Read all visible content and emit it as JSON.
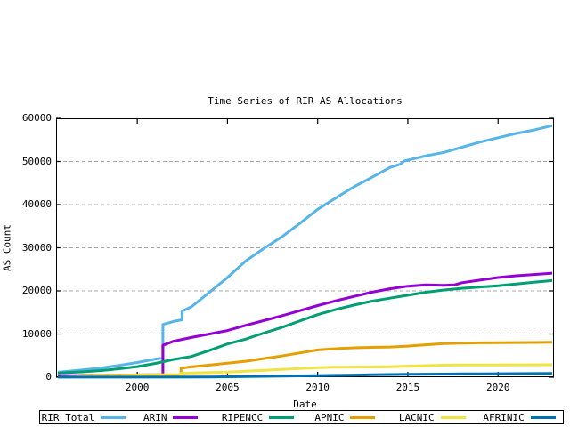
{
  "title": "Time Series of RIR AS Allocations",
  "xlabel": "Date",
  "ylabel": "AS Count",
  "chart_data": {
    "type": "line",
    "title": "Time Series of RIR AS Allocations",
    "xlabel": "Date",
    "ylabel": "AS Count",
    "xlim": [
      1995.5,
      2023.1
    ],
    "ylim": [
      0,
      60000
    ],
    "x_ticks": [
      2000,
      2005,
      2010,
      2015,
      2020
    ],
    "y_ticks": [
      0,
      10000,
      20000,
      30000,
      40000,
      50000,
      60000
    ],
    "grid": "horizontal-dashed",
    "legend_position": "below",
    "series": [
      {
        "name": "RIR Total",
        "color": "#56B4E9",
        "points": [
          [
            1995.6,
            1150
          ],
          [
            1997,
            1700
          ],
          [
            1998,
            2150
          ],
          [
            1999,
            2750
          ],
          [
            2000,
            3400
          ],
          [
            2001,
            4200
          ],
          [
            2001.42,
            4450
          ],
          [
            2001.42,
            12200
          ],
          [
            2002,
            12900
          ],
          [
            2002.48,
            13300
          ],
          [
            2002.48,
            15300
          ],
          [
            2003,
            16300
          ],
          [
            2004,
            19700
          ],
          [
            2005,
            23100
          ],
          [
            2006,
            26900
          ],
          [
            2007,
            29800
          ],
          [
            2008,
            32500
          ],
          [
            2009,
            35600
          ],
          [
            2010,
            38900
          ],
          [
            2011,
            41500
          ],
          [
            2012,
            44100
          ],
          [
            2013,
            46300
          ],
          [
            2014,
            48600
          ],
          [
            2014.6,
            49400
          ],
          [
            2014.8,
            50100
          ],
          [
            2016,
            51300
          ],
          [
            2017,
            52100
          ],
          [
            2018,
            53300
          ],
          [
            2019,
            54500
          ],
          [
            2020,
            55500
          ],
          [
            2021,
            56500
          ],
          [
            2022,
            57300
          ],
          [
            2023,
            58300
          ]
        ]
      },
      {
        "name": "ARIN",
        "color": "#9400D3",
        "points": [
          [
            1995.6,
            300
          ],
          [
            1999,
            500
          ],
          [
            2001.42,
            600
          ],
          [
            2001.42,
            7400
          ],
          [
            2002,
            8300
          ],
          [
            2003,
            9200
          ],
          [
            2004,
            10000
          ],
          [
            2005,
            10800
          ],
          [
            2006,
            12000
          ],
          [
            2007,
            13100
          ],
          [
            2008,
            14200
          ],
          [
            2009,
            15400
          ],
          [
            2010,
            16600
          ],
          [
            2011,
            17700
          ],
          [
            2012,
            18700
          ],
          [
            2013,
            19700
          ],
          [
            2014,
            20500
          ],
          [
            2015,
            21100
          ],
          [
            2016,
            21400
          ],
          [
            2017,
            21300
          ],
          [
            2017.6,
            21400
          ],
          [
            2018,
            21900
          ],
          [
            2019,
            22500
          ],
          [
            2020,
            23100
          ],
          [
            2021,
            23500
          ],
          [
            2022,
            23800
          ],
          [
            2023,
            24100
          ]
        ]
      },
      {
        "name": "RIPENCC",
        "color": "#009E73",
        "points": [
          [
            1995.6,
            950
          ],
          [
            1997,
            1250
          ],
          [
            1998,
            1550
          ],
          [
            1999,
            1950
          ],
          [
            2000,
            2450
          ],
          [
            2001,
            3200
          ],
          [
            2002,
            4100
          ],
          [
            2003,
            4800
          ],
          [
            2004,
            6200
          ],
          [
            2005,
            7700
          ],
          [
            2006,
            8800
          ],
          [
            2007,
            10200
          ],
          [
            2008,
            11500
          ],
          [
            2009,
            13000
          ],
          [
            2010,
            14500
          ],
          [
            2011,
            15700
          ],
          [
            2012,
            16700
          ],
          [
            2013,
            17600
          ],
          [
            2014,
            18300
          ],
          [
            2015,
            19000
          ],
          [
            2016,
            19700
          ],
          [
            2017,
            20200
          ],
          [
            2018,
            20600
          ],
          [
            2019,
            20900
          ],
          [
            2020,
            21200
          ],
          [
            2021,
            21600
          ],
          [
            2022,
            22000
          ],
          [
            2023,
            22400
          ]
        ]
      },
      {
        "name": "APNIC",
        "color": "#E69F00",
        "points": [
          [
            2002.35,
            500
          ],
          [
            2002.42,
            500
          ],
          [
            2002.42,
            2100
          ],
          [
            2003,
            2400
          ],
          [
            2004,
            2800
          ],
          [
            2005,
            3250
          ],
          [
            2006,
            3700
          ],
          [
            2007,
            4300
          ],
          [
            2008,
            4900
          ],
          [
            2009,
            5600
          ],
          [
            2010,
            6300
          ],
          [
            2011,
            6600
          ],
          [
            2012,
            6800
          ],
          [
            2013,
            6900
          ],
          [
            2014,
            7000
          ],
          [
            2015,
            7200
          ],
          [
            2016,
            7500
          ],
          [
            2017,
            7800
          ],
          [
            2018,
            7900
          ],
          [
            2019,
            7950
          ],
          [
            2020,
            8000
          ],
          [
            2022,
            8050
          ],
          [
            2023,
            8100
          ]
        ]
      },
      {
        "name": "LACNIC",
        "color": "#F0E442",
        "points": [
          [
            1995.6,
            0
          ],
          [
            1996.6,
            100
          ],
          [
            1997,
            300
          ],
          [
            1998,
            420
          ],
          [
            1999,
            470
          ],
          [
            2000,
            520
          ],
          [
            2001,
            560
          ],
          [
            2002.42,
            620
          ],
          [
            2002.42,
            900
          ],
          [
            2003,
            980
          ],
          [
            2004,
            1080
          ],
          [
            2005,
            1200
          ],
          [
            2006,
            1380
          ],
          [
            2007,
            1580
          ],
          [
            2008,
            1800
          ],
          [
            2009,
            2000
          ],
          [
            2010,
            2200
          ],
          [
            2011,
            2300
          ],
          [
            2012,
            2360
          ],
          [
            2013,
            2380
          ],
          [
            2014,
            2430
          ],
          [
            2015,
            2550
          ],
          [
            2016,
            2680
          ],
          [
            2017,
            2780
          ],
          [
            2018,
            2820
          ],
          [
            2019,
            2840
          ],
          [
            2020,
            2850
          ],
          [
            2021,
            2860
          ],
          [
            2022,
            2870
          ],
          [
            2023,
            2880
          ]
        ]
      },
      {
        "name": "AFRINIC",
        "color": "#0072B2",
        "points": [
          [
            1995.6,
            20
          ],
          [
            2000,
            30
          ],
          [
            2004,
            60
          ],
          [
            2005,
            100
          ],
          [
            2006,
            150
          ],
          [
            2007,
            210
          ],
          [
            2008,
            260
          ],
          [
            2009,
            310
          ],
          [
            2010,
            380
          ],
          [
            2011,
            440
          ],
          [
            2012,
            490
          ],
          [
            2013,
            570
          ],
          [
            2014,
            620
          ],
          [
            2015,
            660
          ],
          [
            2016,
            700
          ],
          [
            2017,
            730
          ],
          [
            2018,
            760
          ],
          [
            2019,
            790
          ],
          [
            2020,
            810
          ],
          [
            2021,
            835
          ],
          [
            2022,
            855
          ],
          [
            2023,
            875
          ]
        ]
      }
    ]
  }
}
